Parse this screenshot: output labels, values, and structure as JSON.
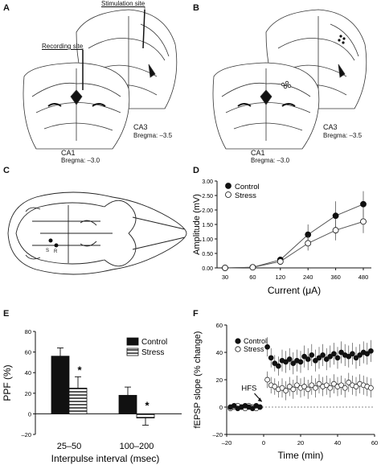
{
  "panel_labels": {
    "a": "A",
    "b": "B",
    "c": "C",
    "d": "D",
    "e": "E",
    "f": "F"
  },
  "panel_a": {
    "stim_label": "Stimulation site",
    "rec_label": "Recording site",
    "upper_region": "CA3",
    "upper_bregma": "Bregma: –3.5",
    "lower_region": "CA1",
    "lower_bregma": "Bregma: –3.0"
  },
  "panel_b": {
    "upper_region": "CA3",
    "upper_bregma": "Bregma: –3.5",
    "lower_region": "CA1",
    "lower_bregma": "Bregma: –3.0"
  },
  "panel_c": {
    "marker_s": "S",
    "marker_r": "R"
  },
  "colors": {
    "control": "#111111",
    "stress": "#ffffff",
    "line": "#555555"
  },
  "chart_data": [
    {
      "id": "D",
      "type": "line",
      "xlabel": "Current (μA)",
      "ylabel": "Amplitude (mV)",
      "categories": [
        "30",
        "60",
        "120",
        "240",
        "360",
        "480"
      ],
      "ylim": [
        0,
        3.0
      ],
      "yticks": [
        "0.00",
        "0.50",
        "1.00",
        "1.50",
        "2.00",
        "2.50",
        "3.00"
      ],
      "legend_position": "top-left",
      "series": [
        {
          "name": "Control",
          "values": [
            0.0,
            0.02,
            0.28,
            1.15,
            1.8,
            2.2
          ],
          "errors": [
            0.0,
            0.02,
            0.08,
            0.35,
            0.5,
            0.45
          ]
        },
        {
          "name": "Stress",
          "values": [
            0.0,
            0.02,
            0.22,
            0.85,
            1.3,
            1.6
          ],
          "errors": [
            0.0,
            0.02,
            0.06,
            0.25,
            0.35,
            0.4
          ]
        }
      ]
    },
    {
      "id": "E",
      "type": "bar",
      "xlabel": "Interpulse interval (msec)",
      "ylabel": "PPF (%)",
      "categories": [
        "25–50",
        "100–200"
      ],
      "ylim": [
        -20,
        80
      ],
      "yticks": [
        "–20",
        "0",
        "20",
        "40",
        "60",
        "80"
      ],
      "legend_position": "top-right",
      "series": [
        {
          "name": "Control",
          "values": [
            56,
            18
          ],
          "errors": [
            8,
            8
          ]
        },
        {
          "name": "Stress",
          "values": [
            25,
            -4
          ],
          "errors": [
            11,
            7
          ]
        }
      ],
      "annotations": [
        "*",
        "*"
      ]
    },
    {
      "id": "F",
      "type": "scatter",
      "xlabel": "Time (min)",
      "ylabel": "fEPSP slope (% change)",
      "xlim": [
        -20,
        60
      ],
      "ylim": [
        -20,
        60
      ],
      "xticks": [
        "–20",
        "0",
        "20",
        "40",
        "60"
      ],
      "yticks": [
        "–20",
        "0",
        "20",
        "40",
        "60"
      ],
      "legend_position": "top-left",
      "annotation": "HFS",
      "series": [
        {
          "name": "Control",
          "x": [
            -18,
            -16,
            -14,
            -12,
            -10,
            -8,
            -6,
            -4,
            -2,
            2,
            4,
            6,
            8,
            10,
            12,
            14,
            16,
            18,
            20,
            22,
            24,
            26,
            28,
            30,
            32,
            34,
            36,
            38,
            40,
            42,
            44,
            46,
            48,
            50,
            52,
            54,
            56,
            58
          ],
          "y": [
            0,
            1,
            -1,
            0,
            1,
            0,
            -1,
            1,
            0,
            44,
            36,
            32,
            30,
            34,
            33,
            35,
            32,
            34,
            33,
            37,
            35,
            38,
            34,
            36,
            38,
            35,
            37,
            39,
            36,
            40,
            38,
            37,
            39,
            36,
            38,
            40,
            39,
            41
          ],
          "errors": [
            2,
            2,
            2,
            2,
            2,
            2,
            2,
            2,
            2,
            7,
            7,
            6,
            7,
            8,
            8,
            8,
            8,
            8,
            8,
            8,
            8,
            8,
            8,
            8,
            8,
            8,
            8,
            8,
            8,
            8,
            8,
            8,
            8,
            8,
            8,
            8,
            8,
            8
          ]
        },
        {
          "name": "Stress",
          "x": [
            -18,
            -16,
            -14,
            -12,
            -10,
            -8,
            -6,
            -4,
            -2,
            2,
            4,
            6,
            8,
            10,
            12,
            14,
            16,
            18,
            20,
            22,
            24,
            26,
            28,
            30,
            32,
            34,
            36,
            38,
            40,
            42,
            44,
            46,
            48,
            50,
            52,
            54,
            56,
            58
          ],
          "y": [
            -1,
            0,
            1,
            0,
            -1,
            1,
            0,
            -1,
            0,
            20,
            16,
            15,
            13,
            14,
            12,
            15,
            13,
            16,
            14,
            15,
            13,
            16,
            14,
            17,
            15,
            16,
            14,
            17,
            15,
            16,
            14,
            18,
            16,
            15,
            17,
            16,
            15,
            14
          ],
          "errors": [
            2,
            2,
            2,
            2,
            2,
            2,
            2,
            2,
            2,
            6,
            6,
            6,
            6,
            7,
            7,
            7,
            7,
            7,
            7,
            7,
            7,
            7,
            7,
            7,
            7,
            7,
            7,
            7,
            7,
            7,
            7,
            7,
            7,
            7,
            7,
            7,
            7,
            7
          ]
        }
      ]
    }
  ]
}
